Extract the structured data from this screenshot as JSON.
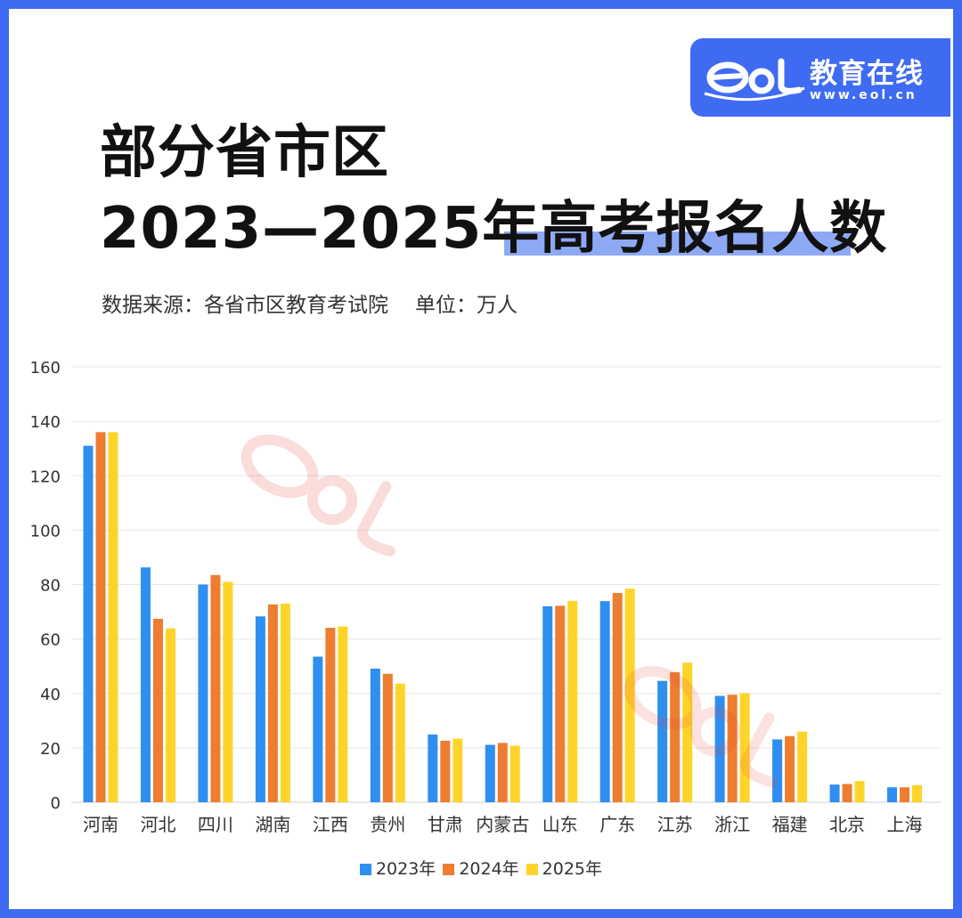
{
  "brand": {
    "name": "教育在线",
    "url": "www.eol.cn",
    "mark_text": "eol",
    "colors": {
      "frame": "#3e6bf2",
      "highlight": "#8ea9f4",
      "watermark": "#e8433a"
    }
  },
  "header": {
    "title_line1": "部分省市区",
    "title_line2": "2023—2025年高考报名人数",
    "source": "数据来源：各省市区教育考试院",
    "unit": "单位：万人"
  },
  "chart_data": {
    "type": "bar",
    "title": "部分省市区 2023—2025年高考报名人数",
    "xlabel": "",
    "ylabel": "",
    "ylim": [
      0,
      160
    ],
    "yticks": [
      0,
      20,
      40,
      60,
      80,
      100,
      120,
      140,
      160
    ],
    "grid": true,
    "legend_position": "bottom",
    "categories": [
      "河南",
      "河北",
      "四川",
      "湖南",
      "江西",
      "贵州",
      "甘肃",
      "内蒙古",
      "山东",
      "广东",
      "江苏",
      "浙江",
      "福建",
      "北京",
      "上海"
    ],
    "series": [
      {
        "name": "2023年",
        "color": "#2e8ff0",
        "values": [
          131,
          86.3,
          80,
          68.3,
          53.5,
          49.1,
          24.9,
          21.1,
          72,
          73.9,
          44.6,
          39.1,
          23.1,
          6.5,
          5.5
        ]
      },
      {
        "name": "2024年",
        "color": "#ed7d31",
        "values": [
          136,
          67.4,
          83.5,
          72.7,
          64.1,
          47.2,
          22.6,
          21.8,
          72.2,
          76.9,
          47.8,
          39.5,
          24.3,
          6.7,
          5.5
        ]
      },
      {
        "name": "2025年",
        "color": "#ffd42a",
        "values": [
          136,
          63.9,
          81,
          73,
          64.6,
          43.6,
          23.4,
          20.8,
          74,
          78.5,
          51.3,
          40.1,
          26,
          7.8,
          6.3
        ]
      }
    ]
  }
}
